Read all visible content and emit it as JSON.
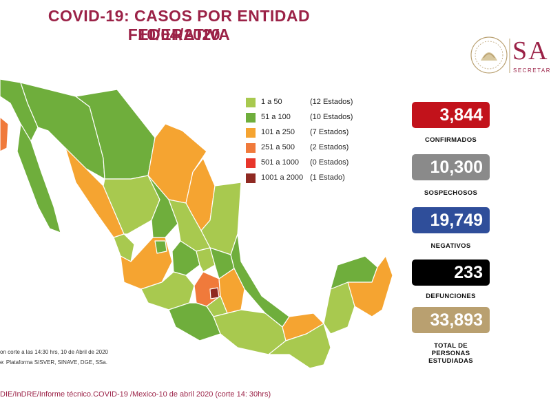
{
  "header": {
    "title_line1": "COVID-19: CASOS POR ENTIDAD FEDERATIVA",
    "title_line2": "10/04/2020"
  },
  "logo": {
    "text": "SA",
    "subtitle": "SECRETAR",
    "colors": {
      "brand": "#9b2247"
    }
  },
  "legend": {
    "items": [
      {
        "range": "1 a 50",
        "count": "(12 Estados)",
        "color": "#a8c94f"
      },
      {
        "range": "51 a 100",
        "count": "(10 Estados)",
        "color": "#6fae3c"
      },
      {
        "range": "101 a 250",
        "count": "(7 Estados)",
        "color": "#f5a431"
      },
      {
        "range": "251 a 500",
        "count": "(2 Estados)",
        "color": "#f07a3b"
      },
      {
        "range": "501 a 1000",
        "count": "(0 Estados)",
        "color": "#e8362b"
      },
      {
        "range": "1001 a 2000",
        "count": "(1 Estado)",
        "color": "#8f2a22"
      }
    ]
  },
  "stats": [
    {
      "value": "3,844",
      "label": "CONFIRMADOS",
      "color": "#c2121b"
    },
    {
      "value": "10,300",
      "label": "SOSPECHOSOS",
      "color": "#8a8a8a"
    },
    {
      "value": "19,749",
      "label": "NEGATIVOS",
      "color": "#2f4e9a"
    },
    {
      "value": "233",
      "label": "DEFUNCIONES",
      "color": "#000000"
    },
    {
      "value": "33,893",
      "label_lines": [
        "TOTAL DE",
        "PERSONAS",
        "ESTUDIADAS"
      ],
      "color": "#b9a070"
    }
  ],
  "notes": {
    "line1": "on corte a las 14:30 hrs, 10 de Abril de 2020",
    "line2": "e: Plataforma SISVER, SINAVE, DGE, SSa."
  },
  "footer": {
    "text": "DIE/InDRE/Informe técnico.COVID-19 /Mexico-10 de abril 2020 (corte 14: 30hrs)"
  }
}
